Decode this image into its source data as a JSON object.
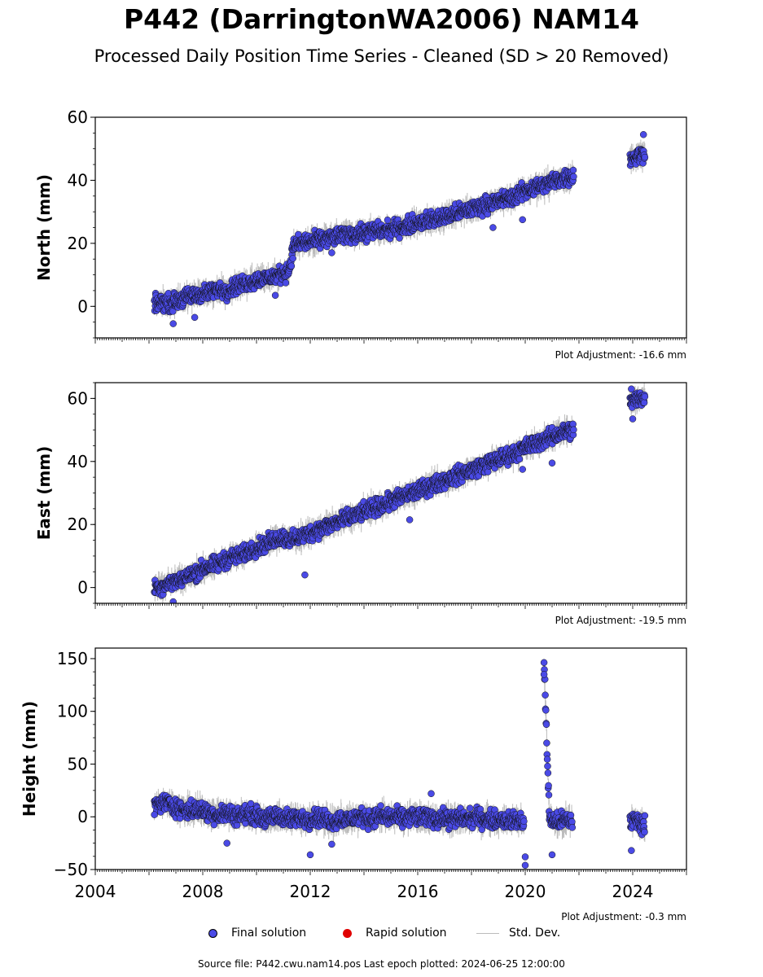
{
  "title": "P442 (DarringtonWA2006) NAM14",
  "subtitle": "Processed Daily Position Time Series - Cleaned (SD > 20 Removed)",
  "legend": {
    "final_label": "Final solution",
    "rapid_label": "Rapid solution",
    "stddev_label": "Std. Dev.",
    "final_color": "#4a4ae6",
    "rapid_color": "#e00000",
    "stddev_color": "#bbbbbb"
  },
  "source_text": "Source file: P442.cwu.nam14.pos  Last epoch plotted: 2024-06-25 12:00:00",
  "chart_data": [
    {
      "type": "scatter",
      "ylabel": "North (mm)",
      "adjustment": "Plot Adjustment: -16.6 mm",
      "xlim": [
        2004,
        2026
      ],
      "ylim": [
        -10,
        60
      ],
      "yticks": [
        0,
        20,
        40,
        60
      ],
      "grid": false,
      "series": [
        {
          "points": [
            [
              2006.2,
              0.5
            ],
            [
              2006.5,
              1.5
            ],
            [
              2006.8,
              1.0
            ],
            [
              2007.1,
              2.0
            ],
            [
              2007.4,
              3.0
            ],
            [
              2007.7,
              3.5
            ],
            [
              2008.0,
              4.0
            ],
            [
              2008.3,
              4.5
            ],
            [
              2008.6,
              5.5
            ],
            [
              2008.9,
              5.0
            ],
            [
              2009.2,
              6.5
            ],
            [
              2009.5,
              7.0
            ],
            [
              2009.8,
              8.0
            ],
            [
              2010.1,
              8.5
            ],
            [
              2010.4,
              9.0
            ],
            [
              2010.7,
              9.5
            ],
            [
              2011.0,
              10.5
            ],
            [
              2011.2,
              11.5
            ],
            [
              2011.4,
              19.5
            ],
            [
              2011.7,
              20.0
            ],
            [
              2012.0,
              20.5
            ],
            [
              2012.3,
              21.0
            ],
            [
              2012.6,
              21.5
            ],
            [
              2012.9,
              22.0
            ],
            [
              2013.2,
              22.5
            ],
            [
              2013.5,
              23.0
            ],
            [
              2013.8,
              23.0
            ],
            [
              2014.1,
              23.5
            ],
            [
              2014.4,
              24.0
            ],
            [
              2014.7,
              24.0
            ],
            [
              2015.0,
              24.5
            ],
            [
              2015.3,
              25.0
            ],
            [
              2015.6,
              25.5
            ],
            [
              2015.9,
              26.5
            ],
            [
              2016.2,
              27.0
            ],
            [
              2016.5,
              27.5
            ],
            [
              2016.8,
              28.0
            ],
            [
              2017.1,
              28.5
            ],
            [
              2017.4,
              29.5
            ],
            [
              2017.7,
              30.0
            ],
            [
              2018.0,
              31.0
            ],
            [
              2018.3,
              31.5
            ],
            [
              2018.6,
              32.5
            ],
            [
              2018.9,
              33.0
            ],
            [
              2019.2,
              34.0
            ],
            [
              2019.5,
              34.5
            ],
            [
              2019.8,
              36.0
            ],
            [
              2020.1,
              37.0
            ],
            [
              2020.4,
              38.0
            ],
            [
              2020.7,
              38.5
            ],
            [
              2021.0,
              39.5
            ],
            [
              2021.3,
              40.5
            ],
            [
              2021.6,
              41.0
            ],
            [
              2021.8,
              41.5
            ],
            [
              2023.9,
              47.0
            ],
            [
              2024.1,
              47.5
            ],
            [
              2024.3,
              48.0
            ],
            [
              2024.45,
              49.0
            ]
          ],
          "outliers": [
            [
              2006.9,
              -5.5
            ],
            [
              2007.7,
              -3.5
            ],
            [
              2010.7,
              3.5
            ],
            [
              2012.8,
              17.0
            ],
            [
              2018.8,
              25.0
            ],
            [
              2019.9,
              27.5
            ],
            [
              2024.4,
              54.5
            ]
          ]
        }
      ]
    },
    {
      "type": "scatter",
      "ylabel": "East (mm)",
      "adjustment": "Plot Adjustment: -19.5 mm",
      "xlim": [
        2004,
        2026
      ],
      "ylim": [
        -5,
        65
      ],
      "yticks": [
        0,
        20,
        40,
        60
      ],
      "grid": false,
      "series": [
        {
          "points": [
            [
              2006.2,
              0.0
            ],
            [
              2006.5,
              0.5
            ],
            [
              2006.8,
              1.5
            ],
            [
              2007.1,
              2.5
            ],
            [
              2007.4,
              3.5
            ],
            [
              2007.7,
              4.5
            ],
            [
              2008.0,
              6.0
            ],
            [
              2008.3,
              7.0
            ],
            [
              2008.6,
              7.5
            ],
            [
              2008.9,
              9.0
            ],
            [
              2009.2,
              10.0
            ],
            [
              2009.5,
              10.5
            ],
            [
              2009.8,
              12.0
            ],
            [
              2010.1,
              13.0
            ],
            [
              2010.4,
              14.0
            ],
            [
              2010.7,
              15.5
            ],
            [
              2011.0,
              16.0
            ],
            [
              2011.3,
              15.0
            ],
            [
              2011.6,
              16.0
            ],
            [
              2011.9,
              17.0
            ],
            [
              2012.2,
              18.0
            ],
            [
              2012.5,
              19.0
            ],
            [
              2012.8,
              20.0
            ],
            [
              2013.1,
              21.0
            ],
            [
              2013.4,
              22.0
            ],
            [
              2013.7,
              23.0
            ],
            [
              2014.0,
              24.0
            ],
            [
              2014.3,
              25.0
            ],
            [
              2014.6,
              26.0
            ],
            [
              2014.9,
              27.0
            ],
            [
              2015.2,
              28.0
            ],
            [
              2015.5,
              29.0
            ],
            [
              2015.8,
              30.0
            ],
            [
              2016.1,
              31.0
            ],
            [
              2016.4,
              32.0
            ],
            [
              2016.7,
              33.0
            ],
            [
              2017.0,
              34.0
            ],
            [
              2017.3,
              35.0
            ],
            [
              2017.6,
              36.0
            ],
            [
              2017.9,
              37.0
            ],
            [
              2018.2,
              38.0
            ],
            [
              2018.5,
              39.0
            ],
            [
              2018.8,
              40.0
            ],
            [
              2019.1,
              41.0
            ],
            [
              2019.4,
              42.0
            ],
            [
              2019.7,
              43.0
            ],
            [
              2020.0,
              44.5
            ],
            [
              2020.3,
              45.5
            ],
            [
              2020.6,
              46.5
            ],
            [
              2020.9,
              47.5
            ],
            [
              2021.2,
              48.5
            ],
            [
              2021.5,
              49.5
            ],
            [
              2021.8,
              50.0
            ],
            [
              2023.9,
              59.0
            ],
            [
              2024.1,
              59.5
            ],
            [
              2024.3,
              60.0
            ],
            [
              2024.45,
              60.5
            ]
          ],
          "outliers": [
            [
              2006.9,
              -4.5
            ],
            [
              2011.8,
              4.0
            ],
            [
              2015.7,
              21.5
            ],
            [
              2019.9,
              37.5
            ],
            [
              2021.0,
              39.5
            ],
            [
              2023.95,
              63.0
            ],
            [
              2024.0,
              53.5
            ]
          ]
        }
      ]
    },
    {
      "type": "scatter",
      "ylabel": "Height (mm)",
      "adjustment": "Plot Adjustment: -0.3 mm",
      "xlim": [
        2004,
        2026
      ],
      "ylim": [
        -50,
        160
      ],
      "yticks": [
        -50,
        0,
        50,
        100,
        150
      ],
      "xticks": [
        2004,
        2008,
        2012,
        2016,
        2020,
        2024
      ],
      "grid": false,
      "series": [
        {
          "points": [
            [
              2006.2,
              10
            ],
            [
              2006.5,
              14
            ],
            [
              2006.8,
              12
            ],
            [
              2007.1,
              8
            ],
            [
              2007.4,
              6
            ],
            [
              2007.7,
              7
            ],
            [
              2008.0,
              6
            ],
            [
              2008.3,
              3
            ],
            [
              2008.6,
              2
            ],
            [
              2008.9,
              4
            ],
            [
              2009.2,
              1
            ],
            [
              2009.5,
              2
            ],
            [
              2009.8,
              3
            ],
            [
              2010.1,
              0
            ],
            [
              2010.4,
              -2
            ],
            [
              2010.7,
              1
            ],
            [
              2011.0,
              0
            ],
            [
              2011.3,
              -3
            ],
            [
              2011.6,
              -1
            ],
            [
              2011.9,
              -2
            ],
            [
              2012.2,
              0
            ],
            [
              2012.5,
              -2
            ],
            [
              2012.8,
              -4
            ],
            [
              2013.1,
              -2
            ],
            [
              2013.4,
              -3
            ],
            [
              2013.7,
              -1
            ],
            [
              2014.0,
              0
            ],
            [
              2014.3,
              -2
            ],
            [
              2014.6,
              1
            ],
            [
              2014.9,
              -1
            ],
            [
              2015.2,
              0
            ],
            [
              2015.5,
              -2
            ],
            [
              2015.8,
              1
            ],
            [
              2016.1,
              -1
            ],
            [
              2016.4,
              0
            ],
            [
              2016.7,
              -2
            ],
            [
              2017.0,
              -1
            ],
            [
              2017.3,
              -3
            ],
            [
              2017.6,
              -1
            ],
            [
              2017.9,
              -2
            ],
            [
              2018.2,
              0
            ],
            [
              2018.5,
              -2
            ],
            [
              2018.8,
              -3
            ],
            [
              2019.1,
              -2
            ],
            [
              2019.4,
              -4
            ],
            [
              2019.7,
              -3
            ],
            [
              2019.95,
              -5
            ],
            [
              2020.7,
              148
            ],
            [
              2020.9,
              -2
            ],
            [
              2021.2,
              -5
            ],
            [
              2021.5,
              -3
            ],
            [
              2021.75,
              -4
            ],
            [
              2023.9,
              -5
            ],
            [
              2024.1,
              -3
            ],
            [
              2024.3,
              -6
            ],
            [
              2024.45,
              -8
            ]
          ],
          "outliers": [
            [
              2006.2,
              2
            ],
            [
              2012.0,
              -36
            ],
            [
              2012.8,
              -26
            ],
            [
              2008.9,
              -25
            ],
            [
              2020.0,
              -46
            ],
            [
              2020.0,
              -38
            ],
            [
              2021.0,
              -36
            ],
            [
              2023.95,
              -32
            ],
            [
              2020.7,
              135
            ],
            [
              2016.5,
              22
            ]
          ]
        }
      ]
    }
  ]
}
